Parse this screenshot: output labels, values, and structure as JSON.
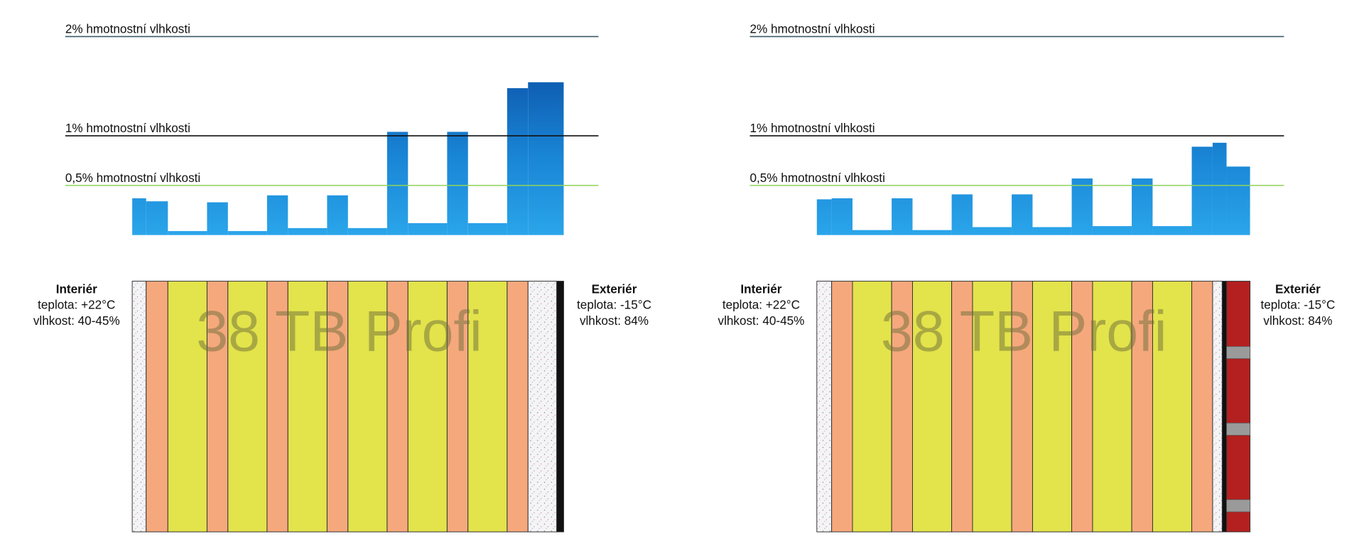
{
  "chart_data": [
    {
      "type": "bar",
      "color": "#1e90dc",
      "categories": [
        null,
        null,
        null,
        null,
        null,
        null,
        null,
        null,
        null,
        null,
        null,
        null,
        null,
        null,
        null
      ],
      "values": [
        0.37,
        0.34,
        0.04,
        0.33,
        0.04,
        0.4,
        0.07,
        0.4,
        0.07,
        1.04,
        0.12,
        1.04,
        0.12,
        1.48,
        1.54
      ],
      "ylim": [
        0,
        2
      ],
      "yticks": [
        {
          "value": 2,
          "label": "2% hmotnostní vlhkosti"
        },
        {
          "value": 1,
          "label": "1% hmotnostní vlhkosti"
        },
        {
          "value": 0.5,
          "label": "0,5% hmotnostní vlhkosti"
        }
      ],
      "interior": [
        "Interiér",
        "teplota: +22°C",
        "vlhkost: 40-45%"
      ],
      "exterior": [
        "Exteriér",
        "teplota: -15°C",
        "vlhkost: 84%"
      ],
      "watermark": "38 TB Profi"
    },
    {
      "type": "bar",
      "color": "#1e90dc",
      "categories": [
        null,
        null,
        null,
        null,
        null,
        null,
        null,
        null,
        null,
        null,
        null,
        null,
        null,
        null,
        null,
        null
      ],
      "values": [
        0.36,
        0.37,
        0.05,
        0.37,
        0.05,
        0.41,
        0.08,
        0.41,
        0.08,
        0.57,
        0.09,
        0.57,
        0.09,
        0.89,
        0.93,
        0.69
      ],
      "ylim": [
        0,
        2
      ],
      "yticks": [
        {
          "value": 2,
          "label": "2% hmotnostní vlhkosti"
        },
        {
          "value": 1,
          "label": "1% hmotnostní vlhkosti"
        },
        {
          "value": 0.5,
          "label": "0,5% hmotnostní vlhkosti"
        }
      ],
      "interior": [
        "Interiér",
        "teplota: +22°C",
        "vlhkost: 40-45%"
      ],
      "exterior": [
        "Exteriér",
        "teplota: -15°C",
        "vlhkost: 84%"
      ],
      "watermark": "38 TB Profi"
    }
  ]
}
